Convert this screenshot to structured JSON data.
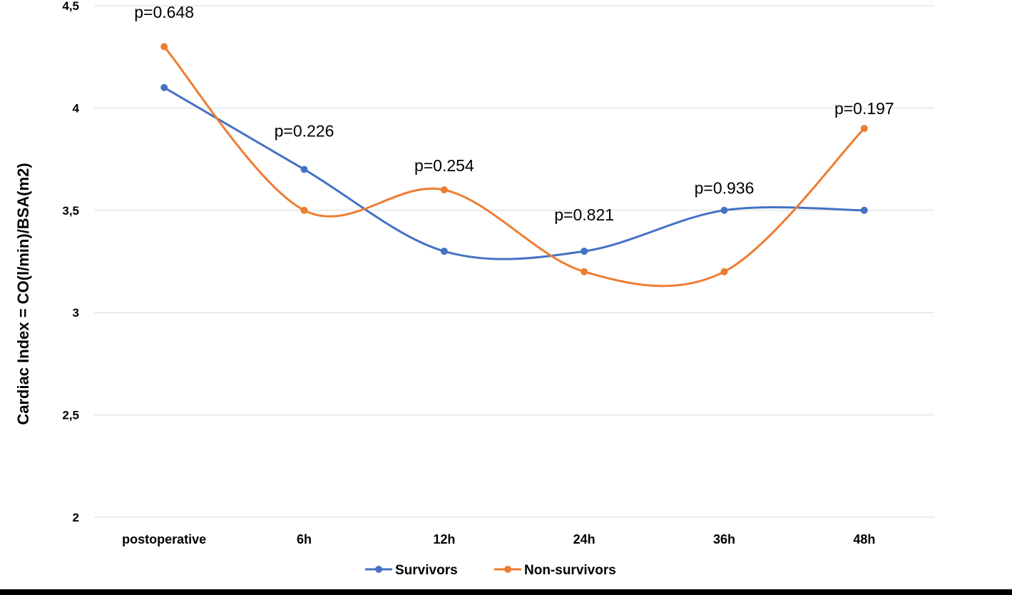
{
  "chart_data": {
    "type": "line",
    "title": "",
    "xlabel": "",
    "ylabel": "Cardiac Index = CO(l/min)/BSA(m2)",
    "categories": [
      "postoperative",
      "6h",
      "12h",
      "24h",
      "36h",
      "48h"
    ],
    "ylim": [
      2,
      4.5
    ],
    "yticks": [
      2,
      2.5,
      3,
      3.5,
      4,
      4.5
    ],
    "ytick_labels": [
      "2",
      "2,5",
      "3",
      "3,5",
      "4",
      "4,5"
    ],
    "grid": true,
    "smooth": true,
    "legend_position": "bottom",
    "series": [
      {
        "name": "Survivors",
        "color": "#4472c4",
        "values": [
          4.1,
          3.7,
          3.3,
          3.3,
          3.5,
          3.5
        ]
      },
      {
        "name": "Non-survivors",
        "color": "#ed7d31",
        "values": [
          4.3,
          3.5,
          3.6,
          3.2,
          3.2,
          3.9
        ]
      }
    ],
    "annotations": [
      {
        "text": "p=0.648",
        "category": "postoperative",
        "y": 4.5
      },
      {
        "text": "p=0.226",
        "category": "6h",
        "y": 3.92
      },
      {
        "text": "p=0.254",
        "category": "12h",
        "y": 3.75
      },
      {
        "text": "p=0.821",
        "category": "24h",
        "y": 3.51
      },
      {
        "text": "p=0.936",
        "category": "36h",
        "y": 3.64
      },
      {
        "text": "p=0.197",
        "category": "48h",
        "y": 4.03
      }
    ]
  }
}
